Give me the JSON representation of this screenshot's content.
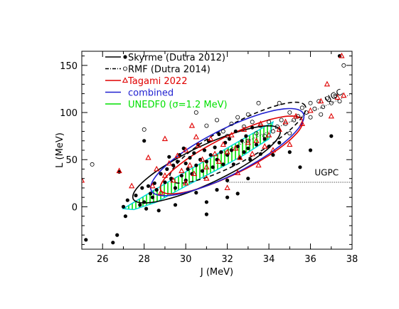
{
  "chart_data": {
    "type": "scatter",
    "title": "",
    "xlabel": "J (MeV)",
    "ylabel": "L (MeV)",
    "xlim": [
      25,
      38
    ],
    "ylim": [
      -45,
      165
    ],
    "x_ticks": [
      26,
      28,
      30,
      32,
      34,
      36,
      38
    ],
    "y_ticks": [
      0,
      50,
      100,
      150
    ],
    "legend_position": "top-left",
    "legend": [
      {
        "label": "Skyrme (Dutra 2012)",
        "color": "#000000",
        "line": "solid",
        "marker": "filled-circle"
      },
      {
        "label": "RMF (Dutra 2014)",
        "color": "#000000",
        "line": "dash-dot",
        "marker": "open-circle"
      },
      {
        "label": "Tagami 2022",
        "color": "#e00000",
        "line": "solid",
        "marker": "triangle"
      },
      {
        "label": "combined",
        "color": "#2020d0",
        "line": "solid",
        "marker": "none"
      },
      {
        "label": "UNEDF0 (σ=1.2 MeV)",
        "color": "#00e000",
        "line": "solid",
        "marker": "none"
      }
    ],
    "annotations": [
      {
        "text": "UGC",
        "x": 36.8,
        "y": 110
      },
      {
        "text": "UGPC",
        "x": 36.2,
        "y": 33
      }
    ],
    "reference_curves": {
      "UGC": {
        "x": [
          31.5,
          32.5,
          33.5,
          34.5,
          35.5,
          36.5,
          37.5,
          38.0
        ],
        "y": [
          55,
          65,
          75,
          85,
          95,
          105,
          115,
          120
        ]
      },
      "UGPC": {
        "x": [
          32.0,
          38.0
        ],
        "y": [
          26,
          26
        ]
      }
    },
    "ellipses": [
      {
        "name": "Skyrme (Dutra 2012)",
        "color": "#000000",
        "style": "solid",
        "cx": 31.0,
        "cy": 45,
        "rx": 3.9,
        "ry": 20,
        "angle": 0.44
      },
      {
        "name": "RMF (Dutra 2014)",
        "color": "#000000",
        "style": "dash",
        "cx": 32.5,
        "cy": 68,
        "rx": 3.7,
        "ry": 20,
        "angle": 0.5
      },
      {
        "name": "Tagami 2022",
        "color": "#e00000",
        "style": "solid",
        "cx": 32.2,
        "cy": 55,
        "rx": 3.8,
        "ry": 20,
        "angle": 0.46
      },
      {
        "name": "combined",
        "color": "#2020d0",
        "style": "solid",
        "cx": 32.0,
        "cy": 58,
        "rx": 4.1,
        "ry": 24,
        "angle": 0.47
      }
    ],
    "unedf0_band": [
      [
        27.0,
        -2
      ],
      [
        27.3,
        2
      ],
      [
        28.5,
        18
      ],
      [
        30.0,
        37
      ],
      [
        31.5,
        56
      ],
      [
        33.0,
        75
      ],
      [
        34.2,
        90
      ],
      [
        34.0,
        72
      ],
      [
        32.8,
        55
      ],
      [
        31.4,
        38
      ],
      [
        30.0,
        22
      ],
      [
        28.6,
        5
      ],
      [
        27.5,
        -3
      ]
    ],
    "series": [
      {
        "name": "Skyrme (Dutra 2012)",
        "marker": "filled-circle",
        "color": "#000000",
        "points": [
          [
            25.2,
            -35
          ],
          [
            26.5,
            -38
          ],
          [
            26.7,
            -30
          ],
          [
            26.8,
            37
          ],
          [
            27.0,
            0
          ],
          [
            27.1,
            -10
          ],
          [
            27.2,
            7
          ],
          [
            27.6,
            12
          ],
          [
            27.8,
            2
          ],
          [
            27.9,
            20
          ],
          [
            28.0,
            5
          ],
          [
            28.0,
            70
          ],
          [
            28.1,
            -2
          ],
          [
            28.2,
            22
          ],
          [
            28.3,
            14
          ],
          [
            28.4,
            10
          ],
          [
            28.5,
            25
          ],
          [
            28.6,
            18
          ],
          [
            28.7,
            -4
          ],
          [
            28.8,
            35
          ],
          [
            29.0,
            26
          ],
          [
            29.1,
            40
          ],
          [
            29.2,
            53
          ],
          [
            29.3,
            30
          ],
          [
            29.4,
            44
          ],
          [
            29.5,
            20
          ],
          [
            29.6,
            48
          ],
          [
            29.7,
            55
          ],
          [
            29.8,
            33
          ],
          [
            29.9,
            62
          ],
          [
            30.0,
            46
          ],
          [
            30.0,
            28
          ],
          [
            30.1,
            40
          ],
          [
            30.2,
            52
          ],
          [
            30.3,
            35
          ],
          [
            30.4,
            57
          ],
          [
            30.5,
            44
          ],
          [
            30.6,
            66
          ],
          [
            30.7,
            50
          ],
          [
            30.8,
            38
          ],
          [
            30.9,
            60
          ],
          [
            31.0,
            48
          ],
          [
            31.0,
            -8
          ],
          [
            31.1,
            70
          ],
          [
            31.2,
            55
          ],
          [
            31.3,
            42
          ],
          [
            31.4,
            63
          ],
          [
            31.5,
            50
          ],
          [
            31.6,
            77
          ],
          [
            31.7,
            58
          ],
          [
            31.8,
            45
          ],
          [
            31.9,
            68
          ],
          [
            32.0,
            55
          ],
          [
            32.0,
            28
          ],
          [
            32.1,
            72
          ],
          [
            32.2,
            60
          ],
          [
            32.3,
            45
          ],
          [
            32.4,
            80
          ],
          [
            32.5,
            64
          ],
          [
            32.6,
            52
          ],
          [
            32.7,
            70
          ],
          [
            32.8,
            58
          ],
          [
            32.9,
            75
          ],
          [
            33.0,
            62
          ],
          [
            33.1,
            50
          ],
          [
            33.2,
            84
          ],
          [
            33.4,
            66
          ],
          [
            33.6,
            56
          ],
          [
            33.8,
            72
          ],
          [
            34.0,
            64
          ],
          [
            34.2,
            55
          ],
          [
            34.5,
            68
          ],
          [
            35.0,
            58
          ],
          [
            35.5,
            42
          ],
          [
            36.0,
            60
          ],
          [
            37.0,
            75
          ],
          [
            37.4,
            160
          ],
          [
            31.5,
            18
          ],
          [
            32.0,
            10
          ],
          [
            29.5,
            2
          ],
          [
            30.5,
            15
          ],
          [
            31.0,
            5
          ],
          [
            32.5,
            14
          ],
          [
            33.0,
            30
          ]
        ]
      },
      {
        "name": "RMF (Dutra 2014)",
        "marker": "open-circle",
        "color": "#000000",
        "points": [
          [
            25.5,
            45
          ],
          [
            28.0,
            82
          ],
          [
            30.5,
            100
          ],
          [
            31.0,
            86
          ],
          [
            31.5,
            92
          ],
          [
            31.8,
            80
          ],
          [
            32.2,
            88
          ],
          [
            32.5,
            95
          ],
          [
            32.8,
            85
          ],
          [
            33.0,
            70
          ],
          [
            33.2,
            90
          ],
          [
            33.4,
            78
          ],
          [
            33.6,
            86
          ],
          [
            33.8,
            75
          ],
          [
            34.0,
            90
          ],
          [
            34.2,
            80
          ],
          [
            34.4,
            85
          ],
          [
            34.6,
            92
          ],
          [
            34.8,
            88
          ],
          [
            35.0,
            100
          ],
          [
            35.2,
            92
          ],
          [
            35.4,
            96
          ],
          [
            35.6,
            105
          ],
          [
            35.8,
            100
          ],
          [
            36.0,
            110
          ],
          [
            36.2,
            104
          ],
          [
            36.4,
            112
          ],
          [
            36.6,
            106
          ],
          [
            36.8,
            115
          ],
          [
            37.0,
            110
          ],
          [
            37.2,
            118
          ],
          [
            37.4,
            112
          ],
          [
            37.6,
            150
          ],
          [
            36.5,
            98
          ],
          [
            36.0,
            95
          ],
          [
            34.5,
            110
          ],
          [
            33.5,
            110
          ],
          [
            35.0,
            78
          ],
          [
            33.0,
            98
          ],
          [
            32.0,
            75
          ]
        ]
      },
      {
        "name": "Tagami 2022",
        "marker": "triangle",
        "color": "#e00000",
        "points": [
          [
            25.0,
            28
          ],
          [
            26.8,
            38
          ],
          [
            27.4,
            22
          ],
          [
            28.2,
            52
          ],
          [
            28.4,
            22
          ],
          [
            28.6,
            40
          ],
          [
            28.8,
            15
          ],
          [
            29.0,
            33
          ],
          [
            29.2,
            46
          ],
          [
            29.4,
            28
          ],
          [
            29.6,
            54
          ],
          [
            29.8,
            38
          ],
          [
            30.0,
            60
          ],
          [
            30.2,
            44
          ],
          [
            30.3,
            86
          ],
          [
            30.4,
            35
          ],
          [
            30.6,
            65
          ],
          [
            30.8,
            50
          ],
          [
            31.0,
            42
          ],
          [
            31.2,
            72
          ],
          [
            31.4,
            56
          ],
          [
            31.6,
            48
          ],
          [
            31.8,
            66
          ],
          [
            32.0,
            58
          ],
          [
            32.0,
            20
          ],
          [
            32.2,
            76
          ],
          [
            32.4,
            62
          ],
          [
            32.6,
            52
          ],
          [
            32.8,
            82
          ],
          [
            33.0,
            68
          ],
          [
            33.2,
            56
          ],
          [
            33.4,
            70
          ],
          [
            33.6,
            88
          ],
          [
            33.8,
            64
          ],
          [
            34.0,
            76
          ],
          [
            34.2,
            60
          ],
          [
            34.5,
            82
          ],
          [
            34.8,
            90
          ],
          [
            35.0,
            66
          ],
          [
            35.3,
            96
          ],
          [
            35.6,
            88
          ],
          [
            36.0,
            102
          ],
          [
            36.5,
            112
          ],
          [
            36.8,
            130
          ],
          [
            37.0,
            96
          ],
          [
            37.3,
            116
          ],
          [
            37.5,
            160
          ],
          [
            37.6,
            118
          ],
          [
            30.0,
            25
          ],
          [
            31.0,
            30
          ],
          [
            29.0,
            72
          ],
          [
            30.5,
            74
          ],
          [
            32.5,
            36
          ],
          [
            33.5,
            44
          ]
        ]
      }
    ]
  }
}
